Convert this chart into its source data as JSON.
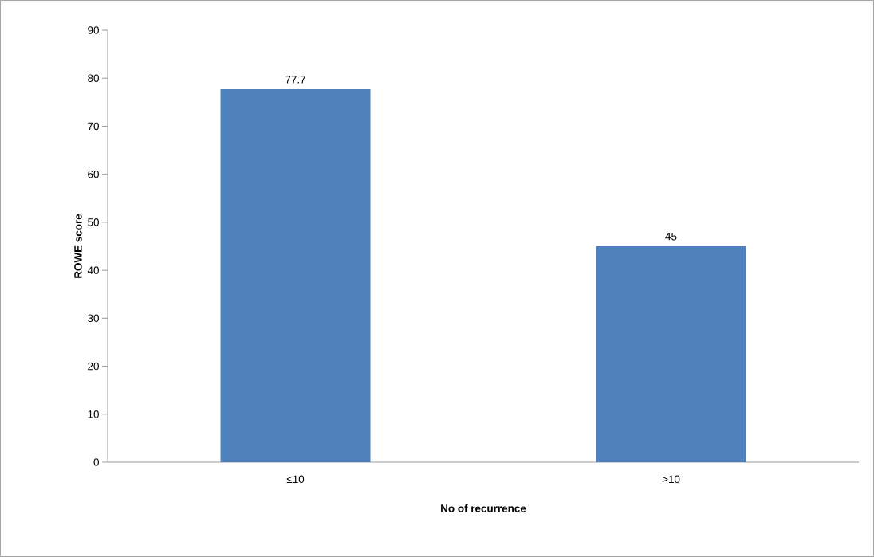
{
  "chart_data": {
    "type": "bar",
    "xlabel": "No of recurrence",
    "ylabel": "ROWE score",
    "categories": [
      "≤10",
      ">10"
    ],
    "values": [
      77.7,
      45
    ],
    "color": "#4f81bd",
    "ylim": [
      0,
      90
    ],
    "yticks": [
      0,
      10,
      20,
      30,
      40,
      50,
      60,
      70,
      80,
      90
    ],
    "data_labels": true,
    "grid": false
  }
}
